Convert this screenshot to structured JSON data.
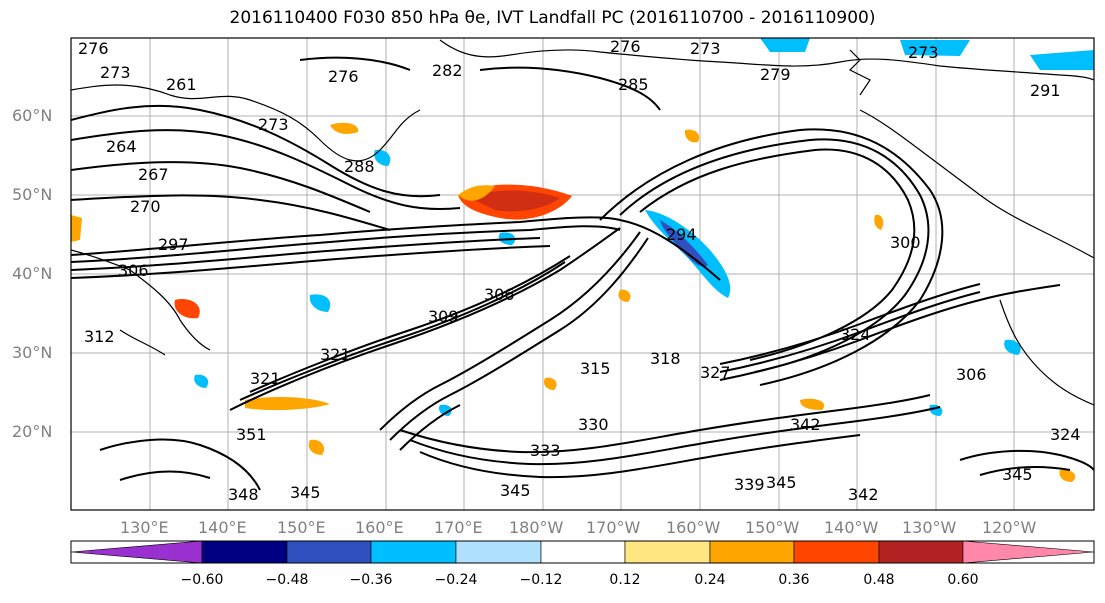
{
  "title": "2016110400 F030 850 hPa θe, IVT Landfall PC (2016110700 - 2016110900)",
  "map": {
    "lat_labels": [
      "60°N",
      "50°N",
      "40°N",
      "30°N",
      "20°N"
    ],
    "lon_labels": [
      "130°E",
      "140°E",
      "150°E",
      "160°E",
      "170°E",
      "180°W",
      "170°W",
      "160°W",
      "150°W",
      "140°W",
      "130°W",
      "120°W"
    ],
    "contour_labels": [
      "276",
      "273",
      "261",
      "273",
      "264",
      "267",
      "270",
      "276",
      "282",
      "276",
      "273",
      "285",
      "279",
      "273",
      "291",
      "288",
      "294",
      "300",
      "306",
      "297",
      "309",
      "306",
      "312",
      "321",
      "321",
      "327",
      "315",
      "318",
      "324",
      "330",
      "333",
      "351",
      "348",
      "345",
      "345",
      "339",
      "342",
      "342",
      "345",
      "345",
      "306",
      "324"
    ]
  },
  "colorbar": {
    "ticks": [
      "−0.60",
      "−0.48",
      "−0.36",
      "−0.24",
      "−0.12",
      "0.12",
      "0.24",
      "0.36",
      "0.48",
      "0.60"
    ],
    "colors": [
      "#9b30d0",
      "#000080",
      "#3050c0",
      "#00bfff",
      "#b0e2ff",
      "#ffffff",
      "#ffe680",
      "#ffa500",
      "#ff4500",
      "#b22222",
      "#ff88aa"
    ]
  }
}
